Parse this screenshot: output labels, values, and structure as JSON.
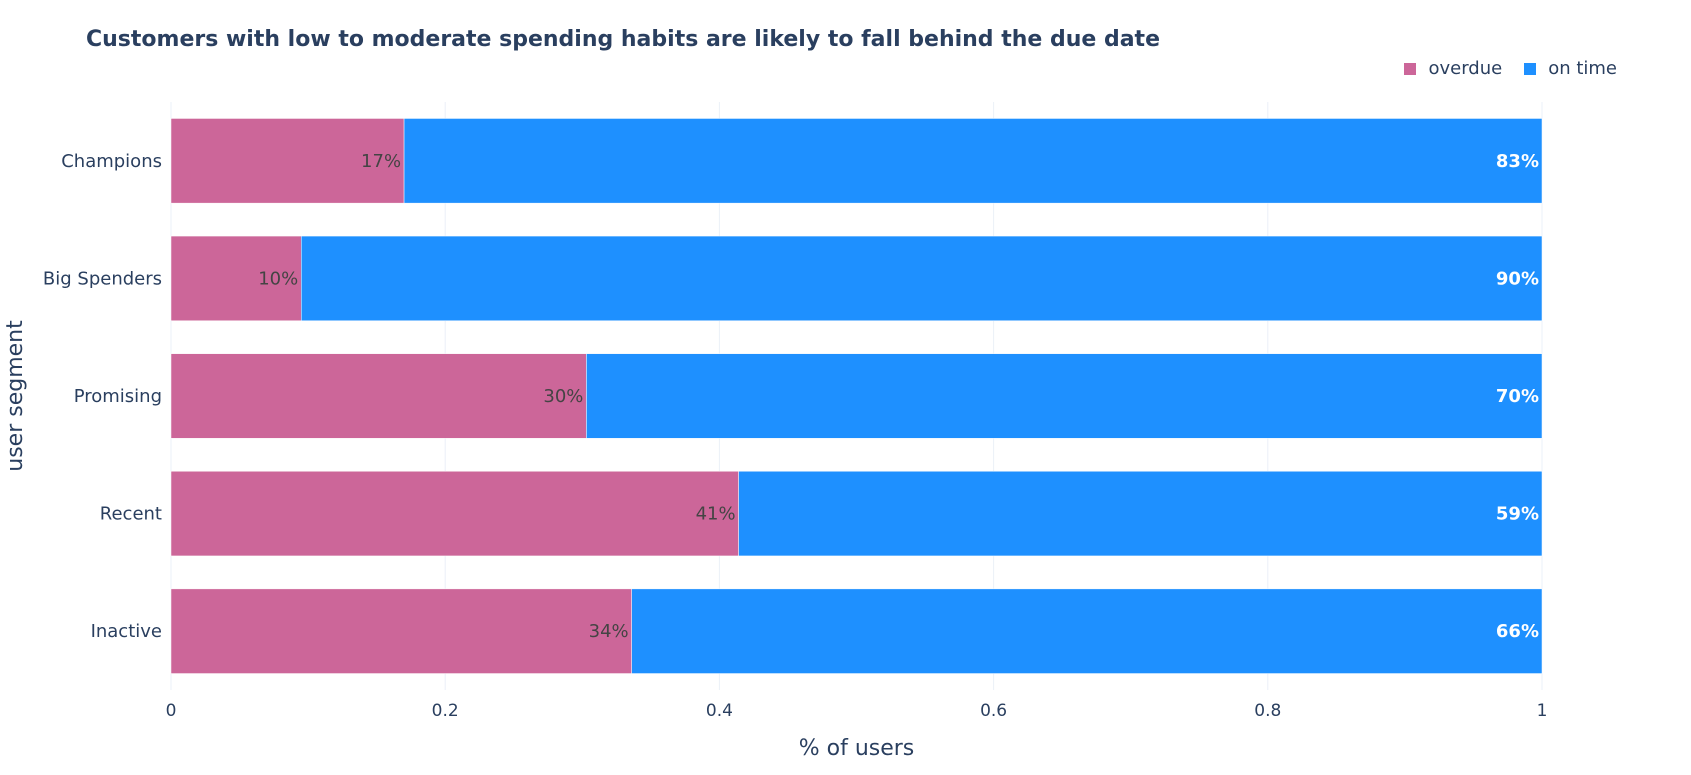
{
  "chart_data": {
    "type": "bar",
    "orientation": "horizontal",
    "barmode": "stack",
    "title": "Customers with low to moderate spending habits are likely to fall behind the due date",
    "xlabel": "% of users",
    "ylabel": "user segment",
    "xlim": [
      0,
      1
    ],
    "xticks": [
      "0",
      "0.2",
      "0.4",
      "0.6",
      "0.8",
      "1"
    ],
    "xtick_values": [
      0,
      0.2,
      0.4,
      0.6,
      0.8,
      1
    ],
    "categories": [
      "Champions",
      "Big Spenders",
      "Promising",
      "Recent",
      "Inactive"
    ],
    "series": [
      {
        "name": "overdue",
        "color": "#cc6699",
        "values": [
          0.17,
          0.095,
          0.303,
          0.414,
          0.336
        ],
        "labels": [
          "17%",
          "10%",
          "30%",
          "41%",
          "34%"
        ]
      },
      {
        "name": "on time",
        "color": "#1e90ff",
        "values": [
          0.83,
          0.905,
          0.697,
          0.586,
          0.664
        ],
        "labels": [
          "83%",
          "90%",
          "70%",
          "59%",
          "66%"
        ]
      }
    ],
    "legend_position": "top-right",
    "grid": true
  }
}
